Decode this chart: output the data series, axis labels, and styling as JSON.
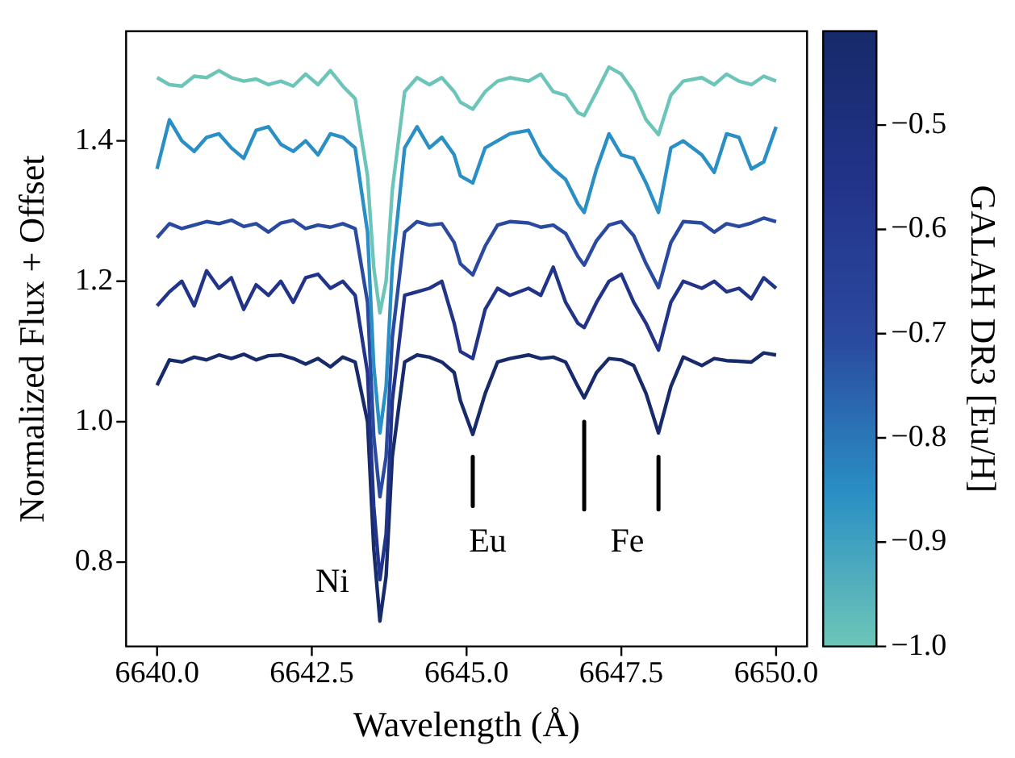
{
  "chart_data": {
    "type": "line",
    "xlabel": "Wavelength (Å)",
    "ylabel": "Normalized Flux + Offset",
    "clabel": "GALAH DR3 [Eu/H]",
    "x": [
      6640.0,
      6640.2,
      6640.4,
      6640.6,
      6640.8,
      6641.0,
      6641.2,
      6641.4,
      6641.6,
      6641.8,
      6642.0,
      6642.2,
      6642.4,
      6642.6,
      6642.8,
      6643.0,
      6643.2,
      6643.4,
      6643.5,
      6643.6,
      6643.7,
      6643.8,
      6644.0,
      6644.2,
      6644.4,
      6644.6,
      6644.8,
      6644.9,
      6645.1,
      6645.3,
      6645.5,
      6645.7,
      6646.0,
      6646.2,
      6646.4,
      6646.6,
      6646.8,
      6646.9,
      6647.1,
      6647.3,
      6647.5,
      6647.7,
      6647.9,
      6648.1,
      6648.3,
      6648.5,
      6648.8,
      6649.0,
      6649.2,
      6649.4,
      6649.6,
      6649.8,
      6650.0
    ],
    "series": [
      {
        "color": "#6cc5b8",
        "values": [
          1.49,
          1.48,
          1.478,
          1.492,
          1.49,
          1.5,
          1.49,
          1.485,
          1.488,
          1.48,
          1.485,
          1.478,
          1.495,
          1.48,
          1.5,
          1.478,
          1.46,
          1.35,
          1.22,
          1.155,
          1.2,
          1.33,
          1.47,
          1.49,
          1.48,
          1.49,
          1.47,
          1.455,
          1.445,
          1.47,
          1.485,
          1.49,
          1.485,
          1.495,
          1.47,
          1.465,
          1.44,
          1.436,
          1.47,
          1.505,
          1.495,
          1.47,
          1.43,
          1.409,
          1.465,
          1.485,
          1.49,
          1.48,
          1.495,
          1.485,
          1.48,
          1.492,
          1.485
        ]
      },
      {
        "color": "#2a8fc4",
        "values": [
          1.36,
          1.43,
          1.4,
          1.385,
          1.405,
          1.41,
          1.39,
          1.375,
          1.415,
          1.42,
          1.395,
          1.385,
          1.4,
          1.38,
          1.41,
          1.405,
          1.39,
          1.27,
          1.08,
          0.984,
          1.05,
          1.22,
          1.39,
          1.42,
          1.39,
          1.405,
          1.38,
          1.35,
          1.34,
          1.39,
          1.4,
          1.41,
          1.415,
          1.38,
          1.36,
          1.345,
          1.31,
          1.298,
          1.36,
          1.41,
          1.38,
          1.375,
          1.34,
          1.298,
          1.39,
          1.4,
          1.38,
          1.355,
          1.41,
          1.405,
          1.36,
          1.37,
          1.42
        ]
      },
      {
        "color": "#2a4aa0",
        "values": [
          1.262,
          1.282,
          1.275,
          1.28,
          1.285,
          1.282,
          1.287,
          1.278,
          1.282,
          1.27,
          1.283,
          1.287,
          1.275,
          1.28,
          1.277,
          1.282,
          1.275,
          1.17,
          0.98,
          0.893,
          0.95,
          1.12,
          1.27,
          1.285,
          1.28,
          1.282,
          1.255,
          1.225,
          1.209,
          1.25,
          1.28,
          1.285,
          1.283,
          1.277,
          1.28,
          1.268,
          1.235,
          1.223,
          1.258,
          1.28,
          1.285,
          1.265,
          1.225,
          1.191,
          1.255,
          1.285,
          1.283,
          1.27,
          1.282,
          1.278,
          1.283,
          1.29,
          1.285
        ]
      },
      {
        "color": "#22348a",
        "values": [
          1.165,
          1.185,
          1.2,
          1.165,
          1.215,
          1.19,
          1.205,
          1.16,
          1.195,
          1.18,
          1.2,
          1.17,
          1.205,
          1.21,
          1.19,
          1.2,
          1.18,
          1.07,
          0.88,
          0.775,
          0.84,
          1.03,
          1.18,
          1.185,
          1.19,
          1.2,
          1.14,
          1.1,
          1.09,
          1.16,
          1.19,
          1.18,
          1.19,
          1.18,
          1.22,
          1.17,
          1.14,
          1.134,
          1.17,
          1.2,
          1.21,
          1.17,
          1.14,
          1.102,
          1.17,
          1.2,
          1.19,
          1.2,
          1.185,
          1.19,
          1.175,
          1.205,
          1.19
        ]
      },
      {
        "color": "#172a6a",
        "values": [
          1.052,
          1.088,
          1.085,
          1.092,
          1.088,
          1.095,
          1.09,
          1.096,
          1.088,
          1.094,
          1.095,
          1.09,
          1.082,
          1.09,
          1.078,
          1.092,
          1.085,
          1.0,
          0.82,
          0.716,
          0.78,
          0.95,
          1.085,
          1.095,
          1.092,
          1.085,
          1.07,
          1.03,
          0.982,
          1.04,
          1.085,
          1.09,
          1.095,
          1.09,
          1.092,
          1.085,
          1.05,
          1.034,
          1.07,
          1.09,
          1.088,
          1.08,
          1.04,
          0.984,
          1.05,
          1.092,
          1.08,
          1.09,
          1.087,
          1.086,
          1.085,
          1.098,
          1.095
        ]
      },
      {
        "type": "line",
        "color": "#000000",
        "x": [
          6645.1,
          6645.1,
          6646.0,
          6646.9,
          6646.9,
          6647.5,
          6648.1,
          6648.1
        ],
        "values": [
          0.95,
          0.88,
          null,
          1.0,
          0.875,
          null,
          0.95,
          0.875
        ]
      }
    ],
    "xlim": [
      6639.5,
      6650.5
    ],
    "xticks": [
      {
        "value": 6640,
        "label": "6640.0"
      },
      {
        "value": 6642.5,
        "label": "6642.5"
      },
      {
        "value": 6645,
        "label": "6645.0"
      },
      {
        "value": 6647.5,
        "label": "6647.5"
      },
      {
        "value": 6650,
        "label": "6650.0"
      }
    ],
    "ylim": [
      0.68,
      1.556
    ],
    "yticks": [
      {
        "value": 0.8,
        "label": "0.8"
      },
      {
        "value": 1.0,
        "label": "1.0"
      },
      {
        "value": 1.2,
        "label": "1.2"
      },
      {
        "value": 1.4,
        "label": "1.4"
      }
    ],
    "clim": [
      -1.0,
      -0.41
    ],
    "cticks": [
      {
        "value": -1.0,
        "label": "−1.0"
      },
      {
        "value": -0.9,
        "label": "−0.9"
      },
      {
        "value": -0.8,
        "label": "−0.8"
      },
      {
        "value": -0.7,
        "label": "−0.7"
      },
      {
        "value": -0.6,
        "label": "−0.6"
      },
      {
        "value": -0.5,
        "label": "−0.5"
      }
    ],
    "annotations": [
      "Ni",
      "Eu",
      "Fe"
    ],
    "grid": false,
    "legend": false,
    "marker": "none",
    "line_style": "solid"
  }
}
